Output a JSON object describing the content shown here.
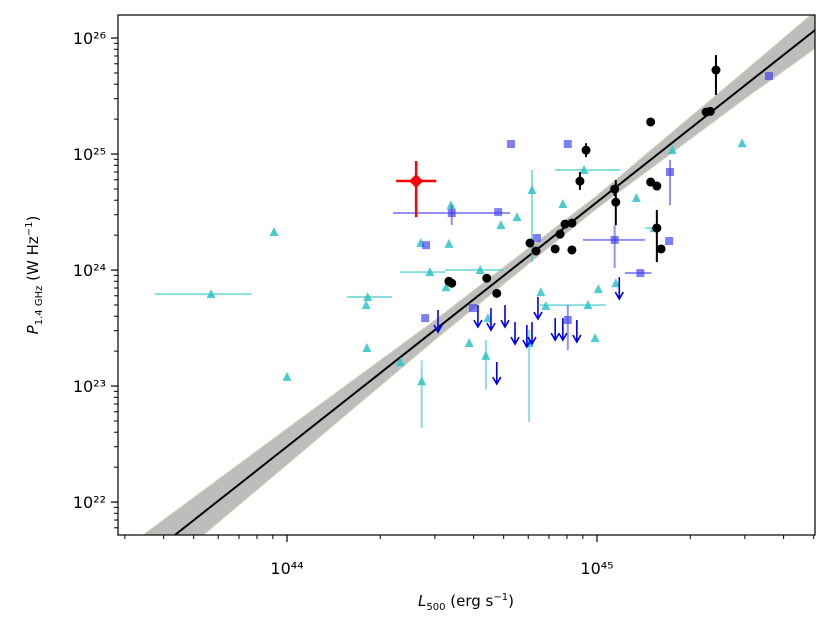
{
  "chart_data": {
    "type": "scatter",
    "xlabel": [
      "L",
      "500",
      " (erg s",
      "−1",
      ")"
    ],
    "ylabel": [
      "P",
      "1.4 GHz",
      " (W Hz",
      "−1",
      ")"
    ],
    "xscale": "log",
    "yscale": "log",
    "xlim": [
      2.85e+43,
      5.05e+45
    ],
    "ylim": [
      5.2e+21,
      1.58e+26
    ],
    "xticks": [
      {
        "value": 1e+44,
        "label": "10⁴⁴"
      },
      {
        "value": 1e+45,
        "label": "10⁴⁵"
      }
    ],
    "yticks": [
      {
        "value": 1e+22,
        "label": "10²²"
      },
      {
        "value": 1e+23,
        "label": "10²³"
      },
      {
        "value": 1e+24,
        "label": "10²⁴"
      },
      {
        "value": 1e+25,
        "label": "10²⁵"
      },
      {
        "value": 1e+26,
        "label": "10²⁶"
      }
    ],
    "xminorticks": [
      3e+43,
      4e+43,
      5e+43,
      6e+43,
      7e+43,
      8e+43,
      9e+43,
      2e+44,
      3e+44,
      4e+44,
      5e+44,
      6e+44,
      7e+44,
      8e+44,
      9e+44,
      2e+45,
      3e+45,
      4e+45,
      5e+45
    ],
    "yminorticks": [
      6e+21,
      7e+21,
      8e+21,
      9e+21,
      2e+22,
      3e+22,
      4e+22,
      5e+22,
      6e+22,
      7e+22,
      8e+22,
      9e+22,
      2e+23,
      3e+23,
      4e+23,
      5e+23,
      6e+23,
      7e+23,
      8e+23,
      9e+23,
      2e+24,
      3e+24,
      4e+24,
      5e+24,
      6e+24,
      7e+24,
      8e+24,
      9e+24,
      2e+25,
      3e+25,
      4e+25,
      5e+25,
      6e+25,
      7e+25,
      8e+25,
      9e+25
    ],
    "fit": {
      "color": "#000000",
      "band_color": "#bdbdbd",
      "x": [
        4.35e+43,
        5.05e+45
      ],
      "y": [
        5.2e+21,
        1.17e+26
      ],
      "band": {
        "x": [
          3e+43,
          1e+44,
          3e+44,
          1e+45,
          3e+45,
          5.05e+45
        ],
        "lower": [
          1.4e+21,
          2.1e+22,
          2.5e+23,
          3.4e+24,
          3e+25,
          8.1e+25
        ],
        "upper": [
          4e+21,
          4.3e+22,
          3.7e+23,
          4.4e+24,
          5.2e+25,
          1.7e+26
        ]
      }
    },
    "series": [
      {
        "marker": "triangle",
        "color": "#2ec4c4",
        "points": [
          {
            "x": 5.69e+43,
            "y": 6.2e+23,
            "xlo": 3.75e+43,
            "xhi": 7.7e+43
          },
          {
            "x": 9.08e+43,
            "y": 2.13e+24
          },
          {
            "x": 1e+44,
            "y": 1.2e+23
          },
          {
            "x": 1.82e+44,
            "y": 5.85e+23,
            "xlo": 1.56e+44,
            "xhi": 2.18e+44
          },
          {
            "x": 1.8e+44,
            "y": 4.99e+23
          },
          {
            "x": 1.81e+44,
            "y": 2.13e+23
          },
          {
            "x": 2.32e+44,
            "y": 1.61e+23
          },
          {
            "x": 2.7e+44,
            "y": 1.71e+24
          },
          {
            "x": 2.72e+44,
            "y": 1.1e+23,
            "ylo": 4.35e+22,
            "yhi": 1.67e+23
          },
          {
            "x": 2.89e+44,
            "y": 9.6e+23,
            "xlo": 2.32e+44,
            "xhi": 3.24e+44
          },
          {
            "x": 3.26e+44,
            "y": 7.1e+23
          },
          {
            "x": 3.33e+44,
            "y": 1.68e+24
          },
          {
            "x": 3.38e+44,
            "y": 3.63e+24
          },
          {
            "x": 3.87e+44,
            "y": 2.35e+23
          },
          {
            "x": 4.38e+44,
            "y": 1.82e+23,
            "ylo": 9.25e+22,
            "yhi": 2.49e+23
          },
          {
            "x": 4.2e+44,
            "y": 1e+24,
            "xlo": 3.24e+44,
            "xhi": 4.98e+44
          },
          {
            "x": 4.45e+44,
            "y": 3.85e+23
          },
          {
            "x": 4.9e+44,
            "y": 2.44e+24
          },
          {
            "x": 5.52e+44,
            "y": 2.86e+24
          },
          {
            "x": 6.17e+44,
            "y": 4.9e+24,
            "ylo": 1.17e+24,
            "yhi": 7.28e+24
          },
          {
            "x": 6.04e+44,
            "y": 2.35e+23,
            "ylo": 4.9e+22,
            "yhi": 3.04e+23
          },
          {
            "x": 6.59e+44,
            "y": 6.46e+23
          },
          {
            "x": 6.84e+44,
            "y": 4.9e+23
          },
          {
            "x": 7.76e+44,
            "y": 3.71e+24
          },
          {
            "x": 9.08e+44,
            "y": 7.28e+24,
            "xlo": 7.33e+44,
            "xhi": 1.19e+45
          },
          {
            "x": 9.35e+44,
            "y": 4.99e+23,
            "xlo": 6.55e+44,
            "xhi": 1.07e+45
          },
          {
            "x": 9.86e+44,
            "y": 2.59e+23
          },
          {
            "x": 1.01e+45,
            "y": 6.85e+23
          },
          {
            "x": 1.15e+45,
            "y": 7.7e+23
          },
          {
            "x": 1.34e+45,
            "y": 4.18e+24
          },
          {
            "x": 1.53e+45,
            "y": 2.3e+24,
            "xlo": 1.43e+45,
            "xhi": 1.6e+45
          },
          {
            "x": 1.75e+45,
            "y": 1.08e+25
          },
          {
            "x": 2.94e+45,
            "y": 1.24e+25
          }
        ]
      },
      {
        "marker": "square",
        "color": "#3a3af0",
        "points": [
          {
            "x": 3.4e+44,
            "y": 3.1e+24,
            "xlo": 2.2e+44,
            "xhi": 5.24e+44,
            "ylo": 2.44e+24,
            "yhi": 3.63e+24
          },
          {
            "x": 4.8e+44,
            "y": 3.16e+24
          },
          {
            "x": 5.28e+44,
            "y": 1.22e+25
          },
          {
            "x": 8.05e+44,
            "y": 1.22e+25
          },
          {
            "x": 2.81e+44,
            "y": 1.64e+24
          },
          {
            "x": 2.79e+44,
            "y": 3.85e+23
          },
          {
            "x": 3.98e+44,
            "y": 4.7e+23
          },
          {
            "x": 6.4e+44,
            "y": 1.89e+24
          },
          {
            "x": 8.05e+44,
            "y": 3.71e+23,
            "ylo": 2.04e+23,
            "yhi": 4.99e+23
          },
          {
            "x": 1.14e+45,
            "y": 1.82e+24,
            "xlo": 9.01e+44,
            "xhi": 1.43e+45,
            "ylo": 1.04e+24,
            "yhi": 2.44e+24
          },
          {
            "x": 1.38e+45,
            "y": 9.42e+23,
            "xlo": 1.23e+45,
            "xhi": 1.5e+45
          },
          {
            "x": 1.72e+45,
            "y": 7e+24,
            "ylo": 3.63e+24,
            "yhi": 8.9e+24
          },
          {
            "x": 1.71e+45,
            "y": 1.78e+24
          },
          {
            "x": 3.59e+45,
            "y": 4.7e+25
          }
        ]
      },
      {
        "marker": "arrow",
        "color": "#0000ee",
        "points": [
          {
            "x": 3.07e+44,
            "y": 4.52e+23
          },
          {
            "x": 4.13e+44,
            "y": 4.99e+23
          },
          {
            "x": 4.55e+44,
            "y": 4.7e+23
          },
          {
            "x": 5.05e+44,
            "y": 4.99e+23
          },
          {
            "x": 5.44e+44,
            "y": 3.56e+23
          },
          {
            "x": 5.94e+44,
            "y": 3.36e+23
          },
          {
            "x": 6.17e+44,
            "y": 3.56e+23
          },
          {
            "x": 6.45e+44,
            "y": 5.85e+23
          },
          {
            "x": 7.33e+44,
            "y": 3.85e+23
          },
          {
            "x": 7.76e+44,
            "y": 3.85e+23
          },
          {
            "x": 8.61e+44,
            "y": 3.71e+23
          },
          {
            "x": 1.18e+45,
            "y": 8.7e+23
          },
          {
            "x": 4.75e+44,
            "y": 1.61e+23
          }
        ]
      },
      {
        "marker": "circle",
        "color": "#000000",
        "points": [
          {
            "x": 3.33e+44,
            "y": 8e+23
          },
          {
            "x": 3.4e+44,
            "y": 7.7e+23
          },
          {
            "x": 4.41e+44,
            "y": 8.5e+23
          },
          {
            "x": 4.75e+44,
            "y": 6.3e+23
          },
          {
            "x": 6.08e+44,
            "y": 1.71e+24
          },
          {
            "x": 6.36e+44,
            "y": 1.46e+24
          },
          {
            "x": 7.33e+44,
            "y": 1.52e+24
          },
          {
            "x": 7.6e+44,
            "y": 2.04e+24
          },
          {
            "x": 7.89e+44,
            "y": 2.49e+24
          },
          {
            "x": 8.3e+44,
            "y": 2.54e+24
          },
          {
            "x": 8.3e+44,
            "y": 1.49e+24
          },
          {
            "x": 8.81e+44,
            "y": 5.84e+24,
            "ylo": 4.9e+24,
            "yhi": 7e+24
          },
          {
            "x": 9.22e+44,
            "y": 1.08e+25,
            "ylo": 9.4e+24,
            "yhi": 1.24e+25
          },
          {
            "x": 1.14e+45,
            "y": 4.99e+24,
            "ylo": 4.35e+24,
            "yhi": 5.4e+24
          },
          {
            "x": 1.15e+45,
            "y": 3.85e+24,
            "ylo": 2.44e+24,
            "yhi": 5.97e+24
          },
          {
            "x": 1.49e+45,
            "y": 1.89e+25
          },
          {
            "x": 1.49e+45,
            "y": 5.74e+24
          },
          {
            "x": 1.56e+45,
            "y": 5.3e+24
          },
          {
            "x": 1.56e+45,
            "y": 2.3e+24,
            "ylo": 1.17e+24,
            "yhi": 3.29e+24
          },
          {
            "x": 1.61e+45,
            "y": 1.52e+24
          },
          {
            "x": 2.25e+45,
            "y": 2.3e+25
          },
          {
            "x": 2.32e+45,
            "y": 2.33e+25
          },
          {
            "x": 2.42e+45,
            "y": 5.3e+25,
            "ylo": 3.23e+25,
            "yhi": 7.13e+25
          }
        ]
      },
      {
        "marker": "diamond",
        "color": "#ff0000",
        "points": [
          {
            "x": 2.61e+44,
            "y": 5.85e+24,
            "xlo": 2.25e+44,
            "xhi": 3.03e+44,
            "ylo": 2.86e+24,
            "yhi": 8.7e+24
          }
        ]
      }
    ]
  }
}
